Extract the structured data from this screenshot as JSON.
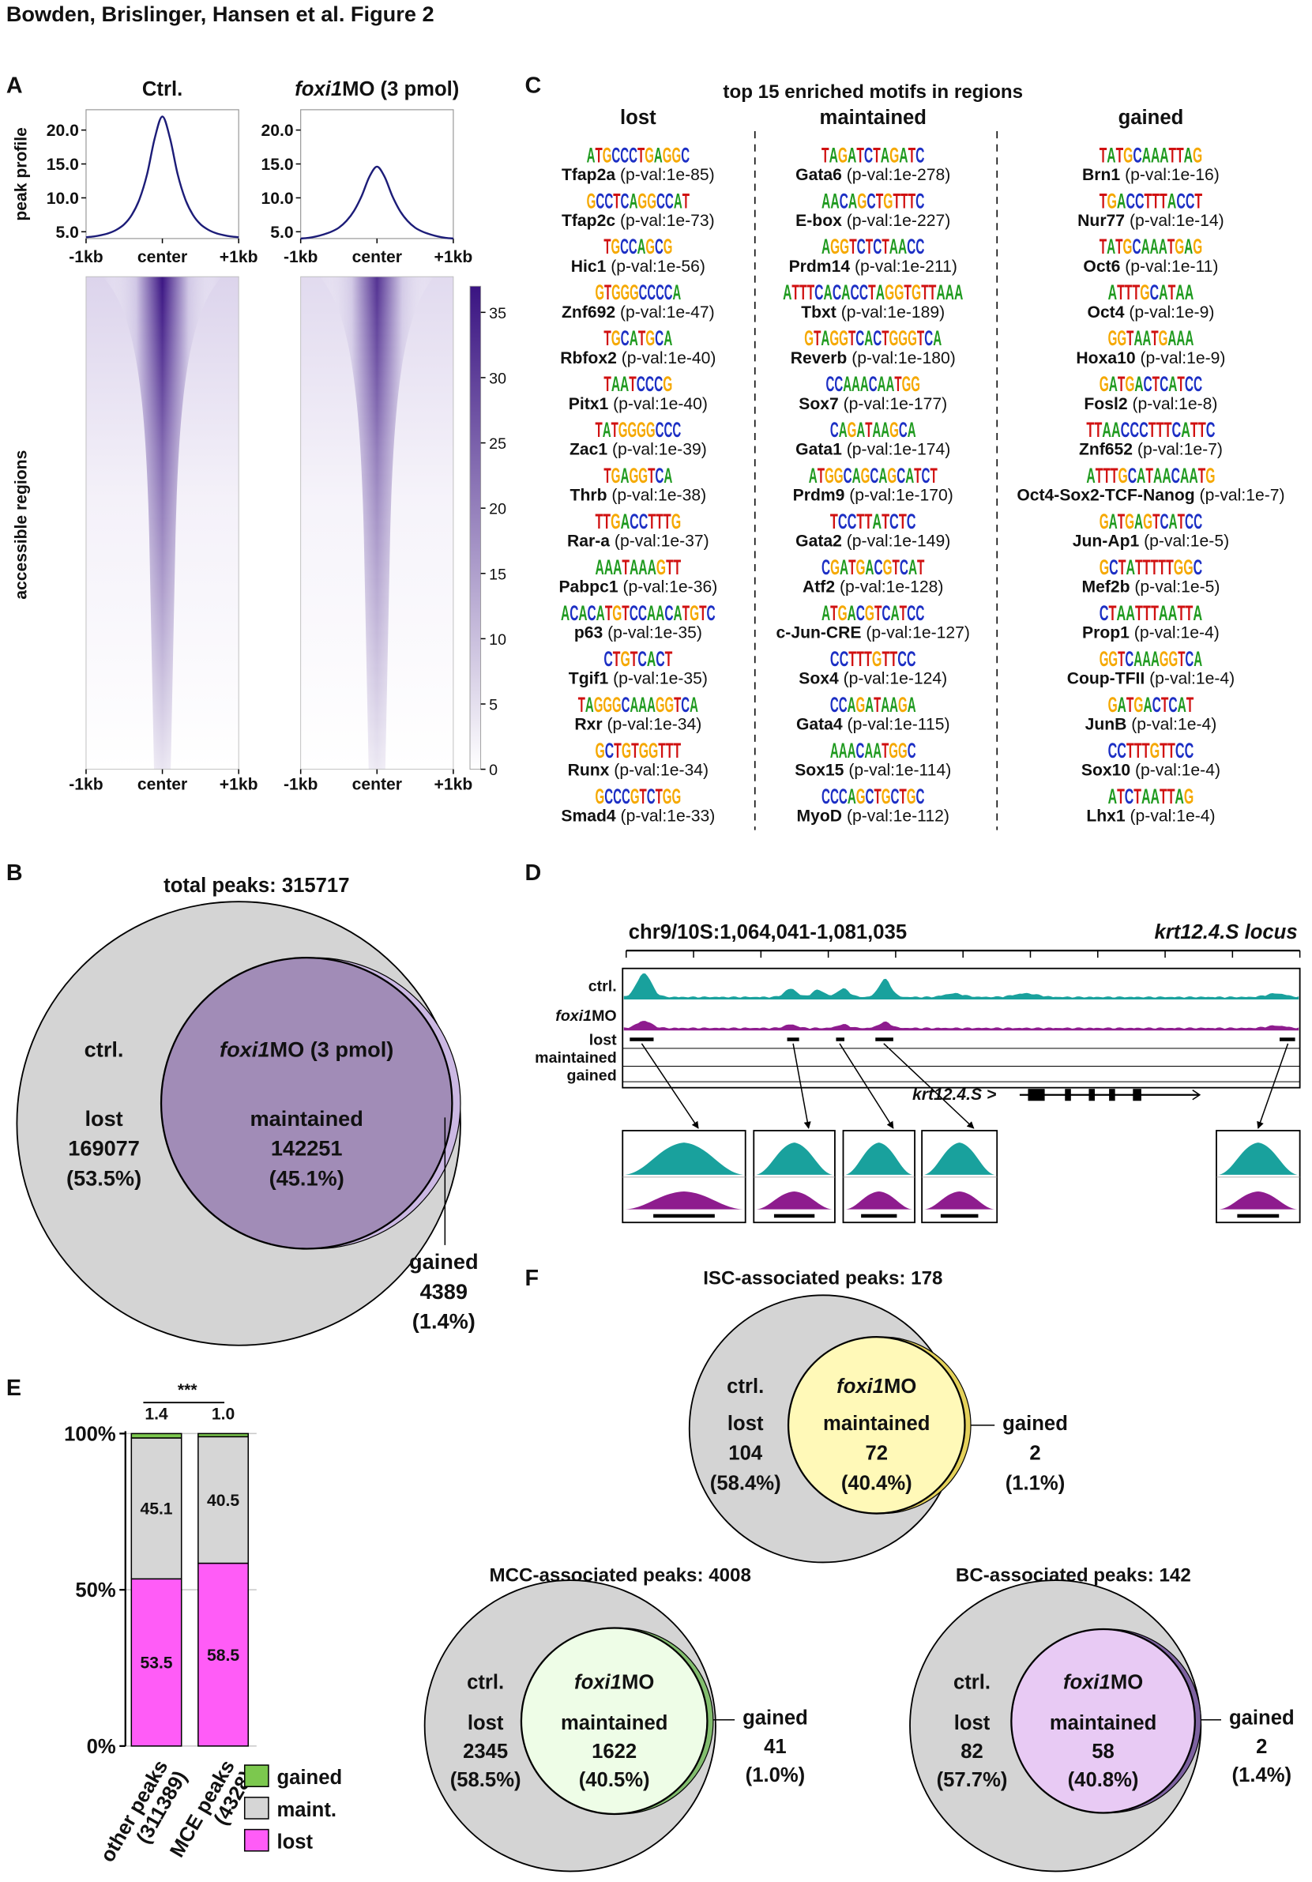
{
  "header": {
    "title": "Bowden, Brislinger, Hansen et al. Figure 2"
  },
  "panel_a": {
    "label": "A",
    "titles": [
      [
        "Ctrl."
      ],
      [
        "foxi1",
        "MO (3 pmol)"
      ]
    ],
    "profile": {
      "y_label": "peak profile",
      "x": [
        -1,
        -0.9,
        -0.8,
        -0.7,
        -0.6,
        -0.5,
        -0.4,
        -0.3,
        -0.2,
        -0.1,
        0,
        0.1,
        0.2,
        0.3,
        0.4,
        0.5,
        0.6,
        0.7,
        0.8,
        0.9,
        1
      ],
      "ctrl": [
        4.2,
        4.3,
        4.5,
        4.8,
        5.3,
        6.1,
        7.5,
        9.8,
        13.5,
        18.8,
        22.0,
        18.8,
        13.5,
        9.8,
        7.5,
        6.1,
        5.3,
        4.8,
        4.5,
        4.3,
        4.2
      ],
      "foxi1mo": [
        4.0,
        4.1,
        4.3,
        4.6,
        5.0,
        5.6,
        6.6,
        8.1,
        10.3,
        13.1,
        14.6,
        13.1,
        10.3,
        8.1,
        6.6,
        5.6,
        5.0,
        4.6,
        4.3,
        4.1,
        4.0
      ],
      "ylim": [
        4,
        23
      ],
      "yticks": [
        {
          "value": 5,
          "label": "5.0"
        },
        {
          "value": 10,
          "label": "10.0"
        },
        {
          "value": 15,
          "label": "15.0"
        },
        {
          "value": 20,
          "label": "20.0"
        }
      ],
      "xlim": [
        -1,
        1
      ],
      "xticks": [
        {
          "value": -1,
          "label": "-1kb"
        },
        {
          "value": 0,
          "label": "center"
        },
        {
          "value": 1,
          "label": "+1kb"
        }
      ]
    },
    "heatmap": {
      "y_label": "accessible regions",
      "xlim": [
        -1,
        1
      ],
      "xticks": [
        {
          "value": -1,
          "label": "-1kb"
        },
        {
          "value": 0,
          "label": "center"
        },
        {
          "value": 1,
          "label": "+1kb"
        }
      ],
      "colorbar_lim": [
        0,
        37
      ],
      "colorbar_ticks": [
        0,
        5,
        10,
        15,
        20,
        25,
        30,
        35
      ]
    }
  },
  "panel_c": {
    "label": "C",
    "title": "top 15 enriched motifs in regions",
    "columns": [
      {
        "header": "lost",
        "motifs": [
          {
            "logo": "ATGCCCTGAGGC",
            "name": "Tfap2a",
            "pval": "(p-val:1e-85)"
          },
          {
            "logo": "GCCTCAGGCCAT",
            "name": "Tfap2c",
            "pval": "(p-val:1e-73)"
          },
          {
            "logo": "TGCCAGCG",
            "name": "Hic1",
            "pval": "(p-val:1e-56)"
          },
          {
            "logo": "GTGGGCCCCA",
            "name": "Znf692",
            "pval": "(p-val:1e-47)"
          },
          {
            "logo": "TGCATGCA",
            "name": "Rbfox2",
            "pval": "(p-val:1e-40)"
          },
          {
            "logo": "TAATCCCG",
            "name": "Pitx1",
            "pval": "(p-val:1e-40)"
          },
          {
            "logo": "TATGGGGCCC",
            "name": "Zac1",
            "pval": "(p-val:1e-39)"
          },
          {
            "logo": "TGAGGTCA",
            "name": "Thrb",
            "pval": "(p-val:1e-38)"
          },
          {
            "logo": "TTGACCTTTG",
            "name": "Rar-a",
            "pval": "(p-val:1e-37)"
          },
          {
            "logo": "AAATAAAGTT",
            "name": "Pabpc1",
            "pval": "(p-val:1e-36)"
          },
          {
            "logo": "ACACATGTCCAACATGTC",
            "name": "p63",
            "pval": "(p-val:1e-35)"
          },
          {
            "logo": "CTGTCACT",
            "name": "Tgif1",
            "pval": "(p-val:1e-35)"
          },
          {
            "logo": "TAGGGCAAAGGTCA",
            "name": "Rxr",
            "pval": "(p-val:1e-34)"
          },
          {
            "logo": "GCTGTGGTTT",
            "name": "Runx",
            "pval": "(p-val:1e-34)"
          },
          {
            "logo": "GCCCGTCTGG",
            "name": "Smad4",
            "pval": "(p-val:1e-33)"
          }
        ]
      },
      {
        "header": "maintained",
        "motifs": [
          {
            "logo": "TAGATCTAGATC",
            "name": "Gata6",
            "pval": "(p-val:1e-278)"
          },
          {
            "logo": "AACAGCTGTTTC",
            "name": "E-box",
            "pval": "(p-val:1e-227)"
          },
          {
            "logo": "AGGTCTCTAACC",
            "name": "Prdm14",
            "pval": "(p-val:1e-211)"
          },
          {
            "logo": "ATTTCACACCTAGGTGTTAAA",
            "name": "Tbxt",
            "pval": "(p-val:1e-189)"
          },
          {
            "logo": "GTAGGTCACTGGGTCA",
            "name": "Reverb",
            "pval": "(p-val:1e-180)"
          },
          {
            "logo": "CCAAACAATGG",
            "name": "Sox7",
            "pval": "(p-val:1e-177)"
          },
          {
            "logo": "CAGATAAGCA",
            "name": "Gata1",
            "pval": "(p-val:1e-174)"
          },
          {
            "logo": "ATGGCAGCAGCATCT",
            "name": "Prdm9",
            "pval": "(p-val:1e-170)"
          },
          {
            "logo": "TCCTTATCTC",
            "name": "Gata2",
            "pval": "(p-val:1e-149)"
          },
          {
            "logo": "CGATGACGTCAT",
            "name": "Atf2",
            "pval": "(p-val:1e-128)"
          },
          {
            "logo": "ATGACGTCATCC",
            "name": "c-Jun-CRE",
            "pval": "(p-val:1e-127)"
          },
          {
            "logo": "CCTTTGTTCC",
            "name": "Sox4",
            "pval": "(p-val:1e-124)"
          },
          {
            "logo": "CCAGATAAGA",
            "name": "Gata4",
            "pval": "(p-val:1e-115)"
          },
          {
            "logo": "AAACAATGGC",
            "name": "Sox15",
            "pval": "(p-val:1e-114)"
          },
          {
            "logo": "CCCAGCTGCTGC",
            "name": "MyoD",
            "pval": "(p-val:1e-112)"
          }
        ]
      },
      {
        "header": "gained",
        "motifs": [
          {
            "logo": "TATGCAAATTAG",
            "name": "Brn1",
            "pval": "(p-val:1e-16)"
          },
          {
            "logo": "TGACCTTTACCT",
            "name": "Nur77",
            "pval": "(p-val:1e-14)"
          },
          {
            "logo": "TATGCAAATGAG",
            "name": "Oct6",
            "pval": "(p-val:1e-11)"
          },
          {
            "logo": "ATTTGCATAA",
            "name": "Oct4",
            "pval": "(p-val:1e-9)"
          },
          {
            "logo": "GGTAATGAAA",
            "name": "Hoxa10",
            "pval": "(p-val:1e-9)"
          },
          {
            "logo": "GATGACTCATCC",
            "name": "Fosl2",
            "pval": "(p-val:1e-8)"
          },
          {
            "logo": "TTAACCCTTTCATTC",
            "name": "Znf652",
            "pval": "(p-val:1e-7)"
          },
          {
            "logo": "ATTTGCATAACAATG",
            "name": "Oct4-Sox2-TCF-Nanog",
            "pval": "(p-val:1e-7)"
          },
          {
            "logo": "GATGAGTCATCC",
            "name": "Jun-Ap1",
            "pval": "(p-val:1e-5)"
          },
          {
            "logo": "GCTATTTTTGGC",
            "name": "Mef2b",
            "pval": "(p-val:1e-5)"
          },
          {
            "logo": "CTAATTTAATTA",
            "name": "Prop1",
            "pval": "(p-val:1e-4)"
          },
          {
            "logo": "GGTCAAAGGTCA",
            "name": "Coup-TFII",
            "pval": "(p-val:1e-4)"
          },
          {
            "logo": "GATGACTCAT",
            "name": "JunB",
            "pval": "(p-val:1e-4)"
          },
          {
            "logo": "CCTTTGTTCC",
            "name": "Sox10",
            "pval": "(p-val:1e-4)"
          },
          {
            "logo": "ATCTAATTAG",
            "name": "Lhx1",
            "pval": "(p-val:1e-4)"
          }
        ]
      }
    ]
  },
  "panel_b": {
    "label": "B",
    "title": "total peaks: 315717",
    "ctrl": "ctrl.",
    "lost": "lost",
    "lost_count": 169077,
    "lost_percent": "(53.5%)",
    "foxi": [
      "foxi1",
      "MO (3 pmol)"
    ],
    "maintained": "maintained",
    "maintained_count": 142251,
    "maintained_percent": "(45.1%)",
    "gained": "gained",
    "gained_count": 4389,
    "gained_percent": "(1.4%)"
  },
  "panel_d": {
    "label": "D",
    "region": "chr9/10S:1,064,041-1,081,035",
    "locus": "krt12.4.S locus",
    "tracks": {
      "ctrl": "ctrl.",
      "foxi": [
        "foxi1",
        "MO"
      ],
      "lost": "lost",
      "maintained": "maintained",
      "gained": "gained"
    },
    "gene": "krt12.4.S >"
  },
  "panel_e": {
    "label": "E"
  },
  "chart_data": {
    "type": "bar",
    "stacked": true,
    "categories": [
      "other peaks",
      "MCE peaks"
    ],
    "category_counts": [
      "(311389)",
      "(4328)"
    ],
    "series": [
      {
        "name": "lost",
        "color": "#ff5cf7",
        "values": [
          53.5,
          58.5
        ]
      },
      {
        "name": "maint.",
        "color": "#d6d6d6",
        "values": [
          45.1,
          40.5
        ]
      },
      {
        "name": "gained",
        "color": "#7cc84e",
        "values": [
          1.4,
          1.0
        ],
        "value_labels": [
          "1.4",
          "1.0"
        ]
      }
    ],
    "ylim": [
      0,
      100
    ],
    "yticks": [
      {
        "value": 0,
        "label": "0%"
      },
      {
        "value": 50,
        "label": "50%"
      },
      {
        "value": 100,
        "label": "100%"
      }
    ],
    "grid": true,
    "annotation": "***"
  },
  "panel_f": {
    "label": "F",
    "venns": [
      {
        "title": "ISC-associated peaks: 178",
        "ctrl": "ctrl.",
        "lost": "lost",
        "lost_count": 104,
        "lost_percent": "(58.4%)",
        "foxi": [
          "foxi1",
          "MO"
        ],
        "maintained": "maintained",
        "maintained_count": 72,
        "maintained_percent": "(40.4%)",
        "gained": "gained",
        "gained_count": 2,
        "gained_percent": "(1.1%)"
      },
      {
        "title": "MCC-associated peaks: 4008",
        "ctrl": "ctrl.",
        "lost": "lost",
        "lost_count": 2345,
        "lost_percent": "(58.5%)",
        "foxi": [
          "foxi1",
          "MO"
        ],
        "maintained": "maintained",
        "maintained_count": 1622,
        "maintained_percent": "(40.5%)",
        "gained": "gained",
        "gained_count": 41,
        "gained_percent": "(1.0%)"
      },
      {
        "title": "BC-associated peaks: 142",
        "ctrl": "ctrl.",
        "lost": "lost",
        "lost_count": 82,
        "lost_percent": "(57.7%)",
        "foxi": [
          "foxi1",
          "MO"
        ],
        "maintained": "maintained",
        "maintained_count": 58,
        "maintained_percent": "(40.8%)",
        "gained": "gained",
        "gained_count": 2,
        "gained_percent": "(1.4%)"
      }
    ]
  }
}
